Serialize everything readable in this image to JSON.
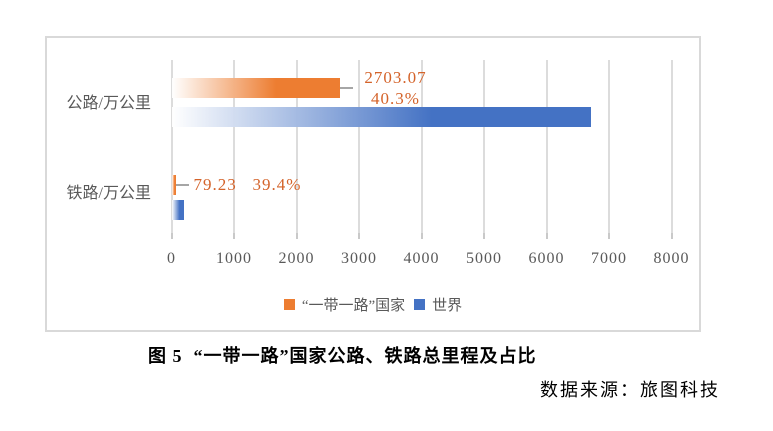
{
  "caption": "图 5  “一带一路”国家公路、铁路总里程及占比",
  "source": "数据来源：旅图科技",
  "colors": {
    "belt_road_orange": "#ED7D31",
    "world_blue": "#4472C4",
    "data_label": "#D4632A",
    "axis_text": "#595959",
    "gridline": "#DCDCDC",
    "box_border": "#D9D9D9",
    "leader_line": "#A6A6A6"
  },
  "chart_data": {
    "type": "bar",
    "orientation": "horizontal",
    "title": "",
    "xlabel": "",
    "ylabel": "",
    "xlim": [
      0,
      8000
    ],
    "grid": true,
    "legend_position": "bottom",
    "x_ticks": [
      0,
      1000,
      2000,
      3000,
      4000,
      5000,
      6000,
      7000,
      8000
    ],
    "categories": [
      "公路/万公里",
      "铁路/万公里"
    ],
    "series": [
      {
        "name": "“一带一路”国家",
        "color": "#ED7D31",
        "values": [
          2703.07,
          79.23
        ]
      },
      {
        "name": "世界",
        "color": "#4472C4",
        "values": [
          6707,
          201
        ]
      }
    ],
    "data_labels": [
      {
        "category": "公路/万公里",
        "value_label": "2703.07",
        "share_label": "40.3%"
      },
      {
        "category": "铁路/万公里",
        "value_label": "79.23",
        "share_label": "39.4%"
      }
    ]
  }
}
